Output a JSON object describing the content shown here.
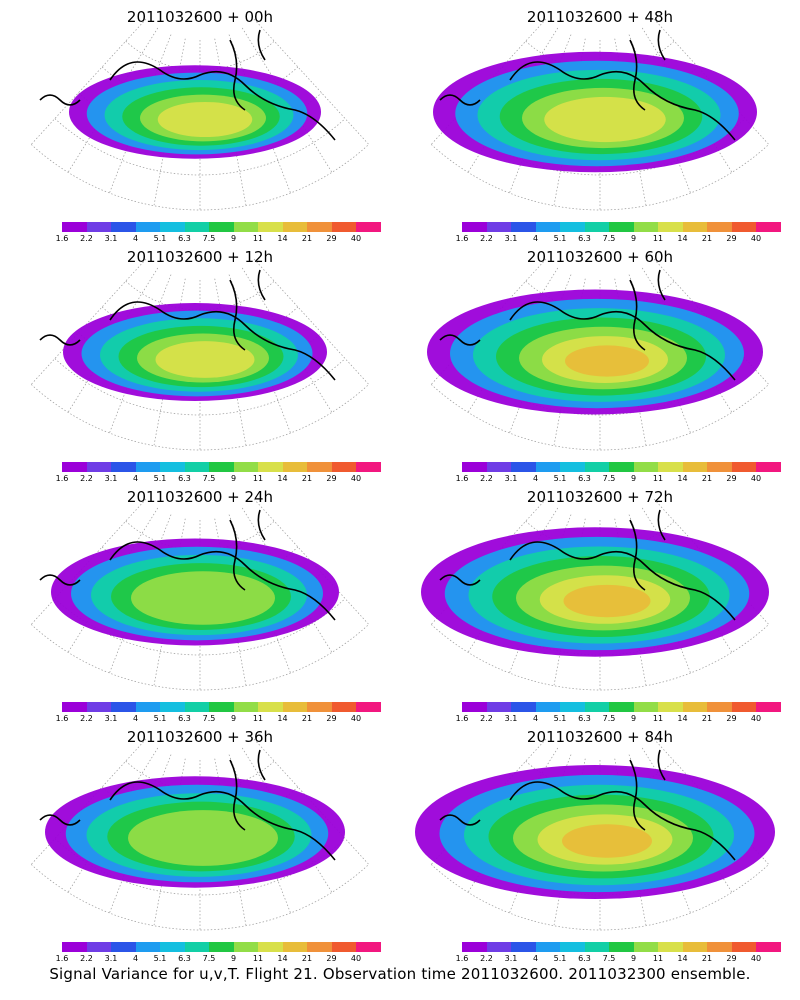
{
  "colorbar": {
    "labels": [
      "1.6",
      "2.2",
      "3.1",
      "4",
      "5.1",
      "6.3",
      "7.5",
      "9",
      "11",
      "14",
      "21",
      "29",
      "40"
    ],
    "colors": [
      "#9b00d9",
      "#6f3de6",
      "#2b55e8",
      "#1e9cf0",
      "#14bfe0",
      "#12cfa6",
      "#21c743",
      "#92dd47",
      "#d8e04a",
      "#e8bd3a",
      "#f0913a",
      "#f05a2f",
      "#f2177f"
    ]
  },
  "panels": [
    {
      "title": "2011032600 + 00h",
      "spread": 0.55,
      "intensity": 0.55
    },
    {
      "title": "2011032600 + 48h",
      "spread": 0.85,
      "intensity": 0.6
    },
    {
      "title": "2011032600 + 12h",
      "spread": 0.6,
      "intensity": 0.55
    },
    {
      "title": "2011032600 + 60h",
      "spread": 0.9,
      "intensity": 0.65
    },
    {
      "title": "2011032600 + 24h",
      "spread": 0.7,
      "intensity": 0.5
    },
    {
      "title": "2011032600 + 72h",
      "spread": 0.95,
      "intensity": 0.7
    },
    {
      "title": "2011032600 + 36h",
      "spread": 0.75,
      "intensity": 0.5
    },
    {
      "title": "2011032600 + 84h",
      "spread": 1.0,
      "intensity": 0.75
    }
  ],
  "footer": "Signal Variance for u,v,T. Flight 21. Observation time 2011032600. 2011032300 ensemble."
}
